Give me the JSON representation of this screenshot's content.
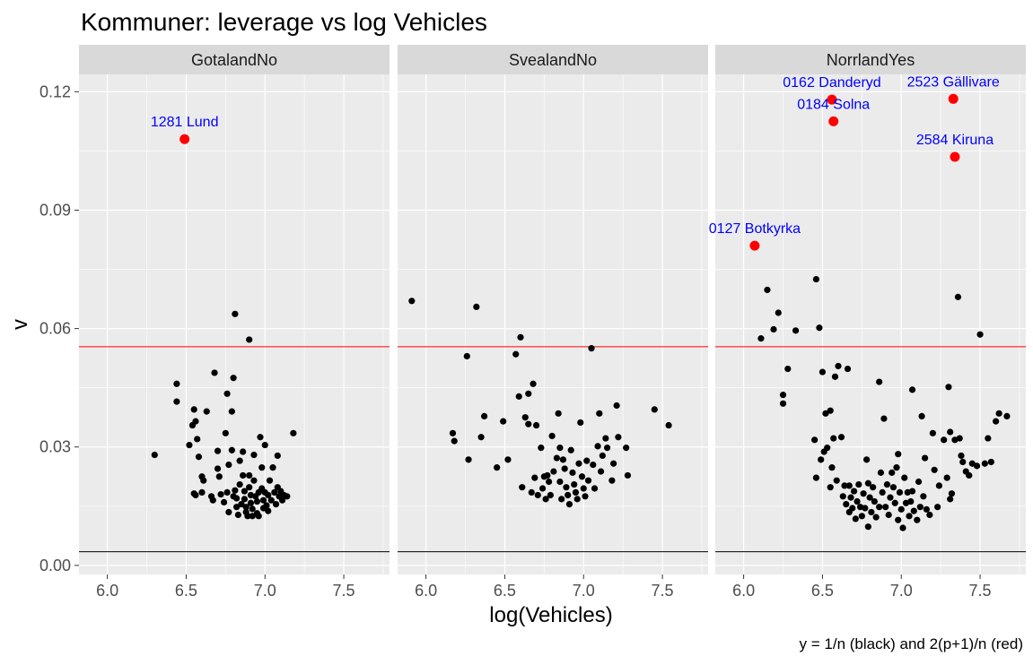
{
  "title": "Kommuner: leverage vs log Vehicles",
  "caption": "y = 1/n (black) and 2(p+1)/n (red)",
  "colors": {
    "panel_bg": "#ebebeb",
    "strip_bg": "#d9d9d9",
    "grid": "#ffffff",
    "point": "#000000",
    "highlight": "#ff0000",
    "label": "#0000ff",
    "ref_black": "#000000",
    "ref_red": "#ff0000"
  },
  "chart_data": {
    "type": "scatter",
    "xlabel": "log(Vehicles)",
    "ylabel": "v",
    "xlim": [
      5.82,
      7.79
    ],
    "ylim": [
      -0.0023,
      0.1244
    ],
    "x_ticks": [
      6.0,
      6.5,
      7.0,
      7.5
    ],
    "x_tick_labels": [
      "6.0",
      "6.5",
      "7.0",
      "7.5"
    ],
    "y_ticks": [
      0.0,
      0.03,
      0.06,
      0.09,
      0.12
    ],
    "y_tick_labels": [
      "0.00",
      "0.03",
      "0.06",
      "0.09",
      "0.12"
    ],
    "grid": true,
    "hlines": [
      {
        "name": "1/n",
        "y": 0.00346,
        "color": "#000000"
      },
      {
        "name": "2(p+1)/n",
        "y": 0.0554,
        "color": "#ff0000"
      }
    ],
    "panels": [
      {
        "strip": "GotalandNo",
        "points": [
          [
            6.3,
            0.028
          ],
          [
            6.44,
            0.046
          ],
          [
            6.44,
            0.0415
          ],
          [
            6.52,
            0.0305
          ],
          [
            6.54,
            0.0355
          ],
          [
            6.55,
            0.0395
          ],
          [
            6.56,
            0.0365
          ],
          [
            6.57,
            0.032
          ],
          [
            6.58,
            0.0275
          ],
          [
            6.55,
            0.0182
          ],
          [
            6.56,
            0.0178
          ],
          [
            6.6,
            0.0185
          ],
          [
            6.6,
            0.0225
          ],
          [
            6.61,
            0.0215
          ],
          [
            6.63,
            0.039
          ],
          [
            6.66,
            0.0175
          ],
          [
            6.67,
            0.0165
          ],
          [
            6.68,
            0.0488
          ],
          [
            6.7,
            0.029
          ],
          [
            6.7,
            0.0245
          ],
          [
            6.71,
            0.0225
          ],
          [
            6.72,
            0.018
          ],
          [
            6.74,
            0.016
          ],
          [
            6.75,
            0.0335
          ],
          [
            6.76,
            0.0435
          ],
          [
            6.76,
            0.0185
          ],
          [
            6.77,
            0.0255
          ],
          [
            6.77,
            0.0135
          ],
          [
            6.79,
            0.039
          ],
          [
            6.79,
            0.0292
          ],
          [
            6.8,
            0.0475
          ],
          [
            6.8,
            0.0175
          ],
          [
            6.81,
            0.0637
          ],
          [
            6.81,
            0.019
          ],
          [
            6.82,
            0.017
          ],
          [
            6.82,
            0.0148
          ],
          [
            6.83,
            0.0128
          ],
          [
            6.84,
            0.0265
          ],
          [
            6.84,
            0.0205
          ],
          [
            6.85,
            0.0155
          ],
          [
            6.86,
            0.0288
          ],
          [
            6.86,
            0.0228
          ],
          [
            6.87,
            0.0188
          ],
          [
            6.87,
            0.0168
          ],
          [
            6.88,
            0.0148
          ],
          [
            6.88,
            0.0135
          ],
          [
            6.89,
            0.0125
          ],
          [
            6.9,
            0.0572
          ],
          [
            6.9,
            0.0228
          ],
          [
            6.9,
            0.0198
          ],
          [
            6.91,
            0.0178
          ],
          [
            6.91,
            0.0158
          ],
          [
            6.92,
            0.0143
          ],
          [
            6.92,
            0.0125
          ],
          [
            6.93,
            0.028
          ],
          [
            6.93,
            0.0215
          ],
          [
            6.94,
            0.0175
          ],
          [
            6.95,
            0.0162
          ],
          [
            6.95,
            0.0132
          ],
          [
            6.96,
            0.0185
          ],
          [
            6.96,
            0.0125
          ],
          [
            6.97,
            0.0325
          ],
          [
            6.98,
            0.0248
          ],
          [
            6.98,
            0.0195
          ],
          [
            6.99,
            0.0165
          ],
          [
            6.99,
            0.0145
          ],
          [
            7.0,
            0.0305
          ],
          [
            7.0,
            0.0185
          ],
          [
            7.01,
            0.0152
          ],
          [
            7.02,
            0.0178
          ],
          [
            7.02,
            0.0138
          ],
          [
            7.03,
            0.0215
          ],
          [
            7.04,
            0.0165
          ],
          [
            7.05,
            0.0248
          ],
          [
            7.06,
            0.0185
          ],
          [
            7.07,
            0.0155
          ],
          [
            7.08,
            0.0278
          ],
          [
            7.08,
            0.0198
          ],
          [
            7.09,
            0.0175
          ],
          [
            7.1,
            0.0188
          ],
          [
            7.11,
            0.0165
          ],
          [
            7.12,
            0.0178
          ],
          [
            7.14,
            0.0175
          ],
          [
            7.18,
            0.0335
          ]
        ],
        "highlights": [
          {
            "x": 6.49,
            "y": 0.108,
            "label": "1281 Lund"
          }
        ]
      },
      {
        "strip": "SvealandNo",
        "points": [
          [
            5.91,
            0.067
          ],
          [
            6.17,
            0.0335
          ],
          [
            6.18,
            0.0315
          ],
          [
            6.26,
            0.053
          ],
          [
            6.27,
            0.0268
          ],
          [
            6.32,
            0.0655
          ],
          [
            6.35,
            0.0325
          ],
          [
            6.37,
            0.0378
          ],
          [
            6.45,
            0.0248
          ],
          [
            6.49,
            0.0365
          ],
          [
            6.52,
            0.0268
          ],
          [
            6.57,
            0.0535
          ],
          [
            6.59,
            0.0428
          ],
          [
            6.6,
            0.0578
          ],
          [
            6.61,
            0.0198
          ],
          [
            6.63,
            0.0375
          ],
          [
            6.65,
            0.0358
          ],
          [
            6.65,
            0.0435
          ],
          [
            6.67,
            0.0185
          ],
          [
            6.68,
            0.046
          ],
          [
            6.69,
            0.0222
          ],
          [
            6.7,
            0.0355
          ],
          [
            6.71,
            0.0178
          ],
          [
            6.73,
            0.0298
          ],
          [
            6.74,
            0.0195
          ],
          [
            6.75,
            0.0225
          ],
          [
            6.76,
            0.0168
          ],
          [
            6.77,
            0.0228
          ],
          [
            6.78,
            0.0212
          ],
          [
            6.79,
            0.0178
          ],
          [
            6.8,
            0.0328
          ],
          [
            6.81,
            0.0238
          ],
          [
            6.83,
            0.0272
          ],
          [
            6.84,
            0.0385
          ],
          [
            6.85,
            0.0298
          ],
          [
            6.85,
            0.0212
          ],
          [
            6.86,
            0.0168
          ],
          [
            6.87,
            0.0268
          ],
          [
            6.88,
            0.0245
          ],
          [
            6.89,
            0.0198
          ],
          [
            6.9,
            0.0178
          ],
          [
            6.91,
            0.0155
          ],
          [
            6.92,
            0.0292
          ],
          [
            6.93,
            0.0235
          ],
          [
            6.94,
            0.0205
          ],
          [
            6.95,
            0.0185
          ],
          [
            6.96,
            0.0168
          ],
          [
            6.97,
            0.0258
          ],
          [
            6.98,
            0.0362
          ],
          [
            6.99,
            0.0225
          ],
          [
            7.0,
            0.0195
          ],
          [
            7.01,
            0.0175
          ],
          [
            7.02,
            0.0265
          ],
          [
            7.03,
            0.0215
          ],
          [
            7.05,
            0.055
          ],
          [
            7.06,
            0.0255
          ],
          [
            7.07,
            0.0195
          ],
          [
            7.09,
            0.0302
          ],
          [
            7.1,
            0.0385
          ],
          [
            7.11,
            0.0238
          ],
          [
            7.12,
            0.0278
          ],
          [
            7.14,
            0.0322
          ],
          [
            7.15,
            0.0298
          ],
          [
            7.18,
            0.0215
          ],
          [
            7.19,
            0.0258
          ],
          [
            7.21,
            0.0405
          ],
          [
            7.22,
            0.0325
          ],
          [
            7.27,
            0.0298
          ],
          [
            7.28,
            0.0228
          ],
          [
            7.45,
            0.0395
          ],
          [
            7.54,
            0.0355
          ]
        ],
        "highlights": []
      },
      {
        "strip": "NorrlandYes",
        "points": [
          [
            6.11,
            0.0575
          ],
          [
            6.15,
            0.0698
          ],
          [
            6.19,
            0.0598
          ],
          [
            6.22,
            0.064
          ],
          [
            6.25,
            0.0432
          ],
          [
            6.25,
            0.041
          ],
          [
            6.28,
            0.0498
          ],
          [
            6.33,
            0.0595
          ],
          [
            6.45,
            0.0318
          ],
          [
            6.46,
            0.0725
          ],
          [
            6.46,
            0.0222
          ],
          [
            6.48,
            0.0602
          ],
          [
            6.49,
            0.0268
          ],
          [
            6.5,
            0.049
          ],
          [
            6.51,
            0.0288
          ],
          [
            6.52,
            0.0385
          ],
          [
            6.53,
            0.0298
          ],
          [
            6.55,
            0.0392
          ],
          [
            6.55,
            0.0198
          ],
          [
            6.56,
            0.0248
          ],
          [
            6.57,
            0.0322
          ],
          [
            6.58,
            0.0478
          ],
          [
            6.59,
            0.0215
          ],
          [
            6.6,
            0.0505
          ],
          [
            6.62,
            0.0325
          ],
          [
            6.63,
            0.0175
          ],
          [
            6.64,
            0.0202
          ],
          [
            6.65,
            0.0155
          ],
          [
            6.66,
            0.0498
          ],
          [
            6.67,
            0.0202
          ],
          [
            6.67,
            0.0135
          ],
          [
            6.68,
            0.0172
          ],
          [
            6.69,
            0.0145
          ],
          [
            6.7,
            0.0188
          ],
          [
            6.71,
            0.0118
          ],
          [
            6.72,
            0.0162
          ],
          [
            6.73,
            0.0205
          ],
          [
            6.74,
            0.0148
          ],
          [
            6.75,
            0.0125
          ],
          [
            6.76,
            0.0182
          ],
          [
            6.77,
            0.0145
          ],
          [
            6.78,
            0.0268
          ],
          [
            6.79,
            0.0098
          ],
          [
            6.79,
            0.0208
          ],
          [
            6.8,
            0.0172
          ],
          [
            6.81,
            0.0135
          ],
          [
            6.82,
            0.0198
          ],
          [
            6.83,
            0.0162
          ],
          [
            6.84,
            0.0122
          ],
          [
            6.86,
            0.0465
          ],
          [
            6.86,
            0.0148
          ],
          [
            6.87,
            0.0235
          ],
          [
            6.88,
            0.0185
          ],
          [
            6.89,
            0.0372
          ],
          [
            6.9,
            0.0148
          ],
          [
            6.91,
            0.0205
          ],
          [
            6.92,
            0.0128
          ],
          [
            6.93,
            0.0172
          ],
          [
            6.94,
            0.0235
          ],
          [
            6.95,
            0.0198
          ],
          [
            6.96,
            0.0158
          ],
          [
            6.97,
            0.0248
          ],
          [
            6.98,
            0.0282
          ],
          [
            6.98,
            0.0115
          ],
          [
            6.99,
            0.0185
          ],
          [
            7.0,
            0.0142
          ],
          [
            7.01,
            0.0095
          ],
          [
            7.02,
            0.0222
          ],
          [
            7.03,
            0.0158
          ],
          [
            7.04,
            0.0185
          ],
          [
            7.05,
            0.0125
          ],
          [
            7.06,
            0.0162
          ],
          [
            7.07,
            0.0445
          ],
          [
            7.07,
            0.0188
          ],
          [
            7.08,
            0.0138
          ],
          [
            7.1,
            0.0115
          ],
          [
            7.11,
            0.0212
          ],
          [
            7.12,
            0.0148
          ],
          [
            7.13,
            0.0378
          ],
          [
            7.14,
            0.0175
          ],
          [
            7.15,
            0.0272
          ],
          [
            7.16,
            0.0142
          ],
          [
            7.18,
            0.0128
          ],
          [
            7.2,
            0.0335
          ],
          [
            7.21,
            0.0242
          ],
          [
            7.23,
            0.0148
          ],
          [
            7.24,
            0.0202
          ],
          [
            7.27,
            0.0318
          ],
          [
            7.29,
            0.0222
          ],
          [
            7.3,
            0.0452
          ],
          [
            7.31,
            0.0338
          ],
          [
            7.31,
            0.0168
          ],
          [
            7.32,
            0.0182
          ],
          [
            7.34,
            0.0318
          ],
          [
            7.36,
            0.068
          ],
          [
            7.37,
            0.0322
          ],
          [
            7.38,
            0.0278
          ],
          [
            7.39,
            0.0262
          ],
          [
            7.41,
            0.0238
          ],
          [
            7.43,
            0.0228
          ],
          [
            7.45,
            0.0258
          ],
          [
            7.48,
            0.0252
          ],
          [
            7.5,
            0.0585
          ],
          [
            7.53,
            0.0258
          ],
          [
            7.55,
            0.0322
          ],
          [
            7.57,
            0.0262
          ],
          [
            7.6,
            0.0365
          ],
          [
            7.62,
            0.0385
          ],
          [
            7.67,
            0.0378
          ]
        ],
        "highlights": [
          {
            "x": 6.07,
            "y": 0.081,
            "label": "0127 Botkyrka"
          },
          {
            "x": 6.56,
            "y": 0.118,
            "label": "0162 Danderyd"
          },
          {
            "x": 6.57,
            "y": 0.1125,
            "label": "0184 Solna"
          },
          {
            "x": 7.33,
            "y": 0.1182,
            "label": "2523 Gällivare"
          },
          {
            "x": 7.34,
            "y": 0.1035,
            "label": "2584 Kiruna"
          }
        ]
      }
    ]
  }
}
